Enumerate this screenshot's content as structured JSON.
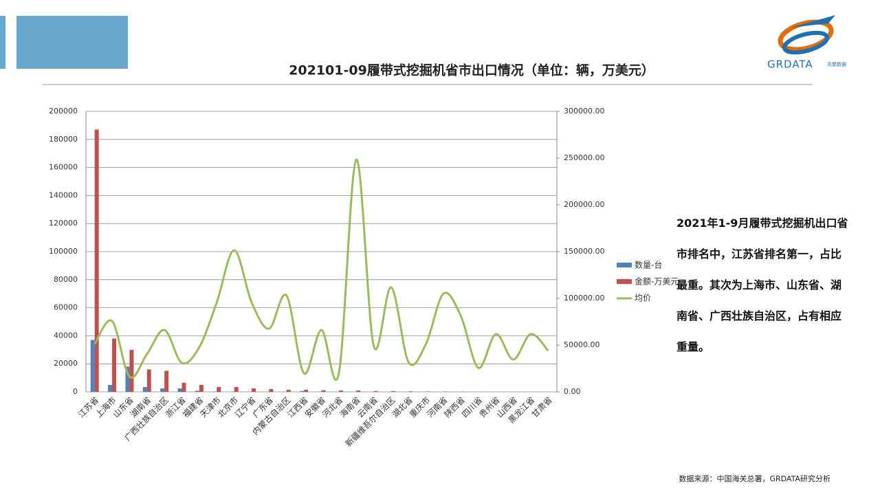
{
  "header": {
    "brand": "GRDATA",
    "brand_sub": "共聚数据"
  },
  "chart_data": {
    "type": "bar_line",
    "title": "202101-09履带式挖掘机省市出口情况（单位：辆，万美元）",
    "categories": [
      "江苏省",
      "上海市",
      "山东省",
      "湖南省",
      "广西壮族自治区",
      "浙江省",
      "福建省",
      "天津市",
      "北京市",
      "辽宁省",
      "广东省",
      "内蒙古自治区",
      "江西省",
      "安徽省",
      "河北省",
      "海南省",
      "云南省",
      "新疆维吾尔自治区",
      "湖北省",
      "重庆市",
      "河南省",
      "陕西省",
      "四川省",
      "贵州省",
      "山西省",
      "黑龙江省",
      "甘肃省"
    ],
    "series": [
      {
        "name": "数量-台",
        "color": "#4f81bd",
        "kind": "bar",
        "values": [
          37000,
          5000,
          18000,
          3500,
          2500,
          2500,
          800,
          300,
          200,
          200,
          150,
          150,
          600,
          100,
          100,
          100,
          80,
          60,
          50,
          40,
          40,
          30,
          20,
          10,
          10,
          10,
          5
        ]
      },
      {
        "name": "金额-万美元",
        "color": "#c0504d",
        "kind": "bar",
        "values": [
          187000,
          38000,
          30000,
          16000,
          15000,
          6500,
          5000,
          3500,
          3500,
          2500,
          2000,
          1500,
          1500,
          1200,
          1000,
          1000,
          600,
          500,
          400,
          300,
          300,
          200,
          100,
          50,
          50,
          30,
          20
        ]
      },
      {
        "name": "均价",
        "color": "#9bbb59",
        "kind": "line",
        "axis": "y2",
        "values": [
          51000,
          75700,
          16200,
          40400,
          66200,
          30900,
          47800,
          95600,
          151500,
          95600,
          67600,
          103000,
          19900,
          66200,
          19900,
          248500,
          49300,
          111800,
          31600,
          51500,
          105100,
          80900,
          25700,
          61800,
          34600,
          61800,
          44100
        ]
      }
    ],
    "ylim": [
      0,
      200000
    ],
    "yticks": [
      0,
      20000,
      40000,
      60000,
      80000,
      100000,
      120000,
      140000,
      160000,
      180000,
      200000
    ],
    "y2lim": [
      0,
      300000
    ],
    "y2ticks": [
      {
        "value": 0,
        "label": "0.00"
      },
      {
        "value": 50000,
        "label": "50000.00"
      },
      {
        "value": 100000,
        "label": "100000.00"
      },
      {
        "value": 150000,
        "label": "150000.00"
      },
      {
        "value": 200000,
        "label": "200000.00"
      },
      {
        "value": 250000,
        "label": "250000.00"
      },
      {
        "value": 300000,
        "label": "300000.00"
      }
    ],
    "grid": true,
    "legend": "right"
  },
  "note": "2021年1-9月履带式挖掘机出口省市排名中，江苏省排名第一，占比最重。其次为上海市、山东省、湖南省、广西壮族自治区，占有相应重量。",
  "source": "数据来源：中国海关总署，GRDATA研究分析"
}
